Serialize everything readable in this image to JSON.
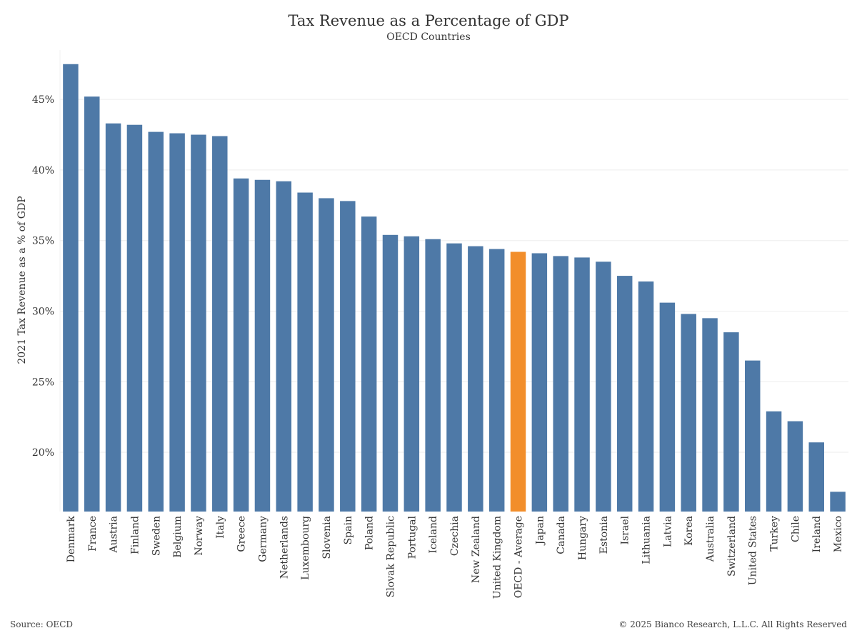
{
  "title": "Tax Revenue as a Percentage of GDP",
  "subtitle": "OECD Countries",
  "source": "Source: OECD",
  "copyright": "© 2025 Bianco Research, L.L.C. All Rights Reserved",
  "colors": {
    "bar": "#4e79a7",
    "highlight": "#f28e2b",
    "grid": "#eeeeee"
  },
  "chart_data": {
    "type": "bar",
    "title": "Tax Revenue as a Percentage of GDP",
    "subtitle": "OECD Countries",
    "xlabel": "",
    "ylabel": "2021 Tax Revenue as a % of GDP",
    "ylim": [
      15.8,
      48.5
    ],
    "yticks": [
      20,
      25,
      30,
      35,
      40,
      45
    ],
    "ytick_suffix": "%",
    "grid": true,
    "highlight_category": "OECD - Average",
    "categories": [
      "Denmark",
      "France",
      "Austria",
      "Finland",
      "Sweden",
      "Belgium",
      "Norway",
      "Italy",
      "Greece",
      "Germany",
      "Netherlands",
      "Luxembourg",
      "Slovenia",
      "Spain",
      "Poland",
      "Slovak Republic",
      "Portugal",
      "Iceland",
      "Czechia",
      "New Zealand",
      "United Kingdom",
      "OECD - Average",
      "Japan",
      "Canada",
      "Hungary",
      "Estonia",
      "Israel",
      "Lithuania",
      "Latvia",
      "Korea",
      "Australia",
      "Switzerland",
      "United States",
      "Turkey",
      "Chile",
      "Ireland",
      "Mexico"
    ],
    "values": [
      47.5,
      45.2,
      43.3,
      43.2,
      42.7,
      42.6,
      42.5,
      42.4,
      39.4,
      39.3,
      39.2,
      38.4,
      38.0,
      37.8,
      36.7,
      35.4,
      35.3,
      35.1,
      34.8,
      34.6,
      34.4,
      34.2,
      34.1,
      33.9,
      33.8,
      33.5,
      32.5,
      32.1,
      30.6,
      29.8,
      29.5,
      28.5,
      26.5,
      22.9,
      22.2,
      20.7,
      17.2
    ]
  }
}
